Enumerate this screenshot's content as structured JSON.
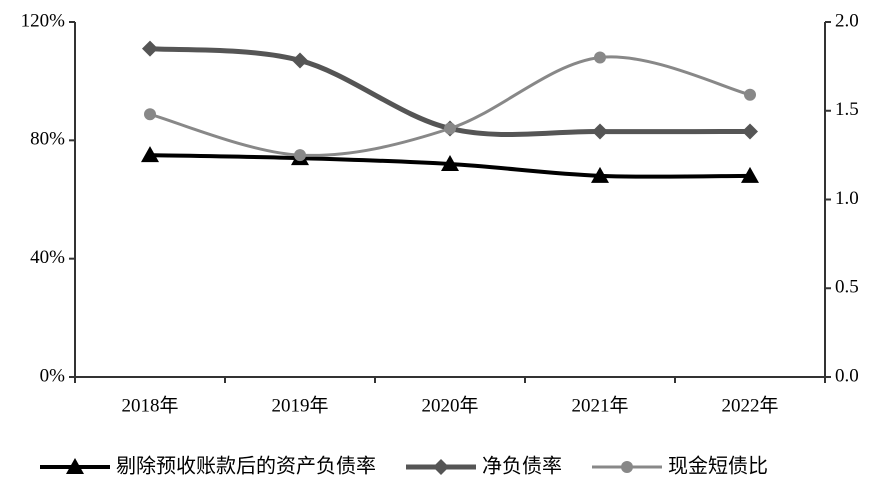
{
  "chart_data": {
    "type": "line",
    "categories": [
      "2018年",
      "2019年",
      "2020年",
      "2021年",
      "2022年"
    ],
    "series": [
      {
        "name": "剔除预收账款后的资产负债率",
        "color": "#000000",
        "marker": "triangle",
        "values": [
          75,
          74,
          72,
          68,
          68
        ]
      },
      {
        "name": "净负债率",
        "color": "#555555",
        "marker": "diamond",
        "values": [
          111,
          107,
          84,
          83,
          83
        ]
      },
      {
        "name": "现金短债比",
        "color": "#888888",
        "marker": "circle",
        "axis": "y2",
        "values": [
          1.48,
          1.25,
          1.4,
          1.8,
          1.59
        ]
      }
    ],
    "ylim": [
      0,
      120
    ],
    "yticks": [
      {
        "value": 0,
        "label": "0%"
      },
      {
        "value": 40,
        "label": "40%"
      },
      {
        "value": 80,
        "label": "80%"
      },
      {
        "value": 120,
        "label": "120%"
      }
    ],
    "y2lim": [
      0,
      2
    ],
    "y2ticks": [
      {
        "value": 0,
        "label": "0.0"
      },
      {
        "value": 0.5,
        "label": "0.5"
      },
      {
        "value": 1,
        "label": "1.0"
      },
      {
        "value": 1.5,
        "label": "1.5"
      },
      {
        "value": 2,
        "label": "2.0"
      }
    ],
    "legend": "bottom"
  }
}
